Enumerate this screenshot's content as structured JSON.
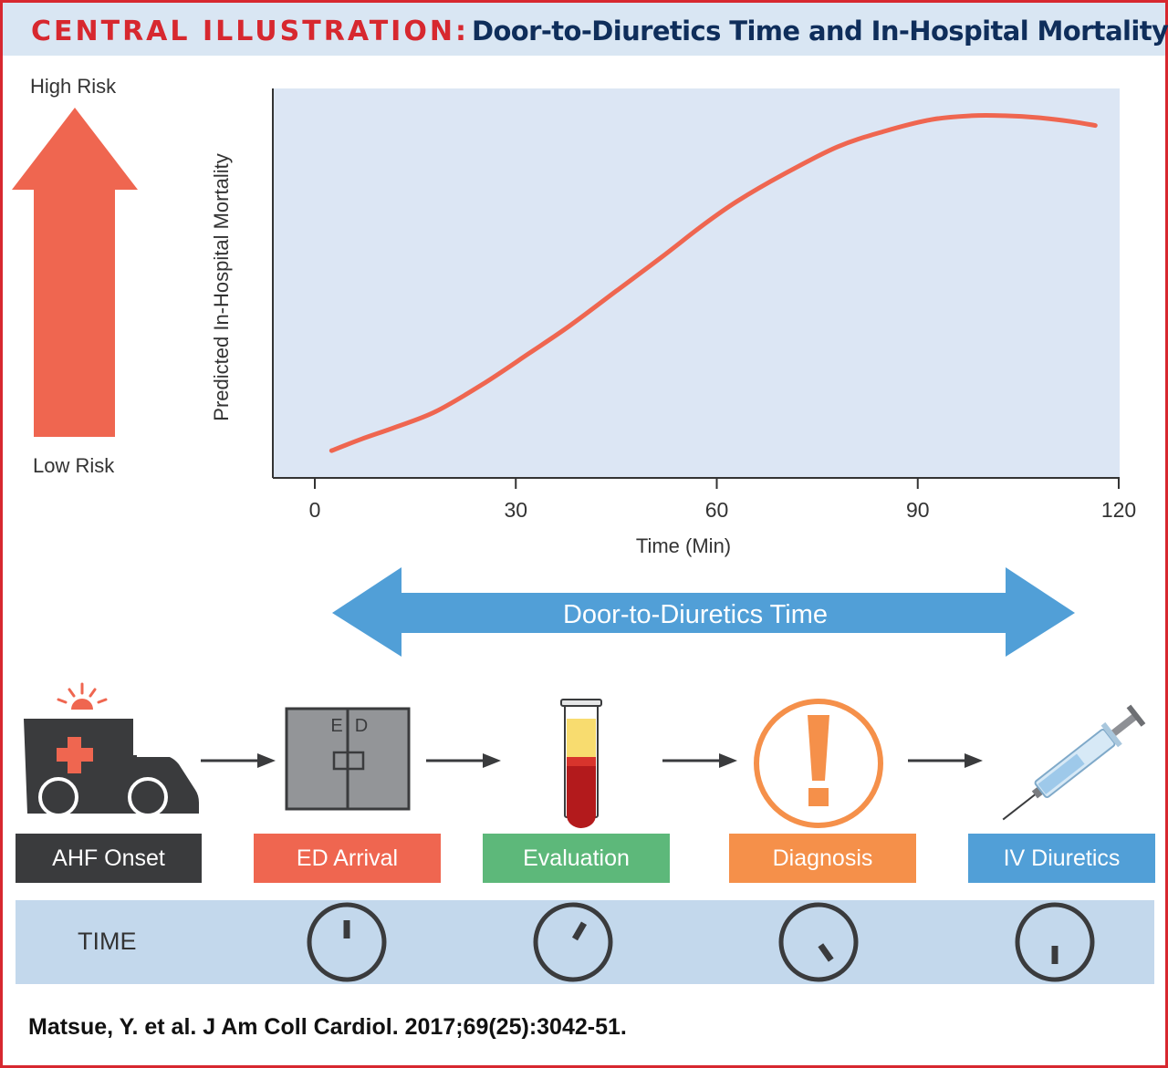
{
  "header": {
    "label": "CENTRAL ILLUSTRATION:",
    "title": "Door-to-Diuretics Time and In-Hospital Mortality"
  },
  "risk_arrow": {
    "high_label": "High Risk",
    "low_label": "Low Risk",
    "color": "#ef6650"
  },
  "chart_data": {
    "type": "line",
    "ylabel": "Predicted In-Hospital Mortality",
    "xlabel": "Time (Min)",
    "x_ticks": [
      "0",
      "30",
      "60",
      "90",
      "120"
    ],
    "xlim": [
      0,
      120
    ],
    "series": [
      {
        "color": "#ef6650",
        "x": [
          2.5,
          7,
          12,
          18,
          25,
          32,
          38,
          45,
          52,
          58,
          63,
          70,
          78,
          85,
          92,
          98,
          103,
          108,
          113,
          116.5
        ],
        "y": [
          0.07,
          0.1,
          0.13,
          0.17,
          0.24,
          0.32,
          0.39,
          0.48,
          0.57,
          0.65,
          0.71,
          0.78,
          0.85,
          0.89,
          0.92,
          0.93,
          0.93,
          0.925,
          0.915,
          0.905
        ]
      }
    ],
    "ylim": [
      0,
      1
    ],
    "plot_background": "#dce6f4"
  },
  "door_to_diuretics": {
    "label": "Door-to-Diuretics Time",
    "color": "#519fd7"
  },
  "stages": [
    {
      "label": "AHF Onset",
      "color": "#3a3b3d"
    },
    {
      "label": "ED Arrival",
      "color": "#ef6650"
    },
    {
      "label": "Evaluation",
      "color": "#5db87a"
    },
    {
      "label": "Diagnosis",
      "color": "#f5904a"
    },
    {
      "label": "IV Diuretics",
      "color": "#519fd7"
    }
  ],
  "ed_door": {
    "left": "E",
    "right": "D"
  },
  "time_row": {
    "label": "TIME",
    "clock_hand_angles_deg": [
      0,
      30,
      145,
      180
    ]
  },
  "citation": "Matsue, Y. et al. J Am Coll Cardiol. 2017;69(25):3042-51."
}
